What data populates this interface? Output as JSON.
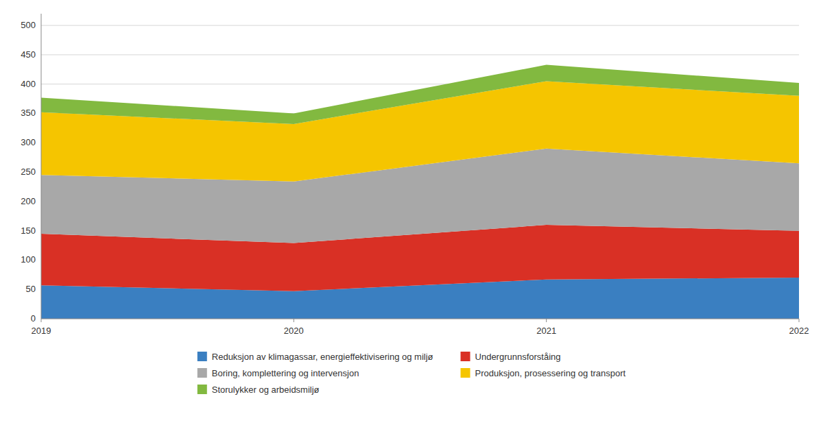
{
  "chart_data": {
    "type": "area",
    "stacked": true,
    "x": [
      2019,
      2020,
      2021,
      2022
    ],
    "series": [
      {
        "name": "Reduksjon av klimagassar, energieffektivisering og miljø",
        "color": "#3a7fc1",
        "values": [
          57,
          47,
          67,
          70
        ]
      },
      {
        "name": "Undergrunnsforståing",
        "color": "#d93025",
        "values": [
          88,
          82,
          93,
          80
        ]
      },
      {
        "name": "Boring, komplettering og intervensjon",
        "color": "#a8a8a8",
        "values": [
          100,
          105,
          130,
          115
        ]
      },
      {
        "name": "Produksjon, prosessering og transport",
        "color": "#f5c500",
        "values": [
          107,
          98,
          115,
          115
        ]
      },
      {
        "name": "Storulykker og arbeidsmiljø",
        "color": "#82b940",
        "values": [
          25,
          18,
          28,
          22
        ]
      }
    ],
    "xlim": [
      2019,
      2022
    ],
    "xticks": [
      2019,
      2020,
      2021,
      2022
    ],
    "ylim": [
      0,
      520
    ],
    "yticks": [
      0,
      50,
      100,
      150,
      200,
      250,
      300,
      350,
      400,
      450,
      500
    ],
    "grid": true,
    "legend": "bottom"
  }
}
